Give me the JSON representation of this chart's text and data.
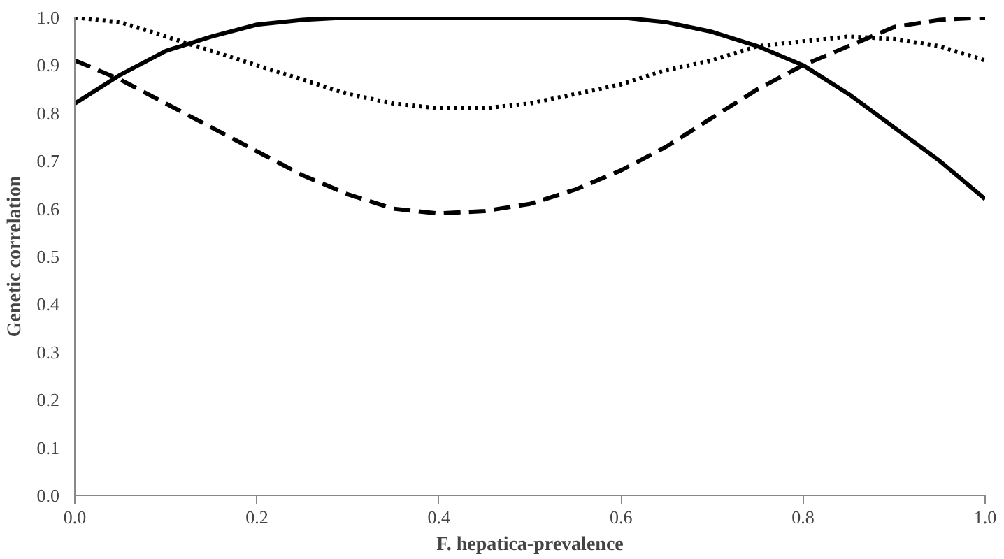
{
  "chart_data": {
    "type": "line",
    "xlabel": "F. hepatica-prevalence",
    "ylabel": "Genetic correlation",
    "xlim": [
      0,
      1
    ],
    "ylim": [
      0,
      1
    ],
    "xticks": [
      {
        "value": 0,
        "label": "0.0"
      },
      0.2,
      0.4,
      0.6,
      0.8,
      {
        "value": 1,
        "label": "1.0"
      }
    ],
    "yticks": [
      {
        "value": 0,
        "label": "0.0"
      },
      0.1,
      0.2,
      0.3,
      0.4,
      0.5,
      0.6,
      0.7,
      0.8,
      0.9,
      {
        "value": 1,
        "label": "1.0"
      }
    ],
    "marker": "none",
    "series": [
      {
        "color": "#000000",
        "line_style": "solid",
        "x": [
          0,
          0.05,
          0.1,
          0.15,
          0.2,
          0.25,
          0.3,
          0.4,
          0.5,
          0.6,
          0.65,
          0.7,
          0.75,
          0.8,
          0.85,
          0.9,
          0.95,
          1.0
        ],
        "values": [
          0.82,
          0.88,
          0.93,
          0.96,
          0.985,
          0.995,
          1.0,
          1.0,
          1.0,
          1.0,
          0.99,
          0.97,
          0.94,
          0.9,
          0.84,
          0.77,
          0.7,
          0.62
        ]
      },
      {
        "color": "#000000",
        "line_style": "dashed",
        "x": [
          0,
          0.05,
          0.1,
          0.15,
          0.2,
          0.25,
          0.3,
          0.35,
          0.4,
          0.45,
          0.5,
          0.55,
          0.6,
          0.65,
          0.7,
          0.75,
          0.8,
          0.85,
          0.9,
          0.95,
          1.0
        ],
        "values": [
          0.91,
          0.87,
          0.82,
          0.77,
          0.72,
          0.67,
          0.63,
          0.6,
          0.59,
          0.595,
          0.61,
          0.64,
          0.68,
          0.73,
          0.79,
          0.85,
          0.9,
          0.94,
          0.98,
          0.995,
          1.0
        ]
      },
      {
        "color": "#000000",
        "line_style": "dotted",
        "x": [
          0,
          0.05,
          0.1,
          0.15,
          0.2,
          0.25,
          0.3,
          0.35,
          0.4,
          0.45,
          0.5,
          0.55,
          0.6,
          0.65,
          0.7,
          0.75,
          0.8,
          0.85,
          0.9,
          0.95,
          1.0
        ],
        "values": [
          1.0,
          0.99,
          0.96,
          0.93,
          0.9,
          0.87,
          0.84,
          0.82,
          0.81,
          0.81,
          0.82,
          0.84,
          0.86,
          0.89,
          0.91,
          0.94,
          0.95,
          0.96,
          0.955,
          0.94,
          0.91
        ]
      }
    ]
  }
}
